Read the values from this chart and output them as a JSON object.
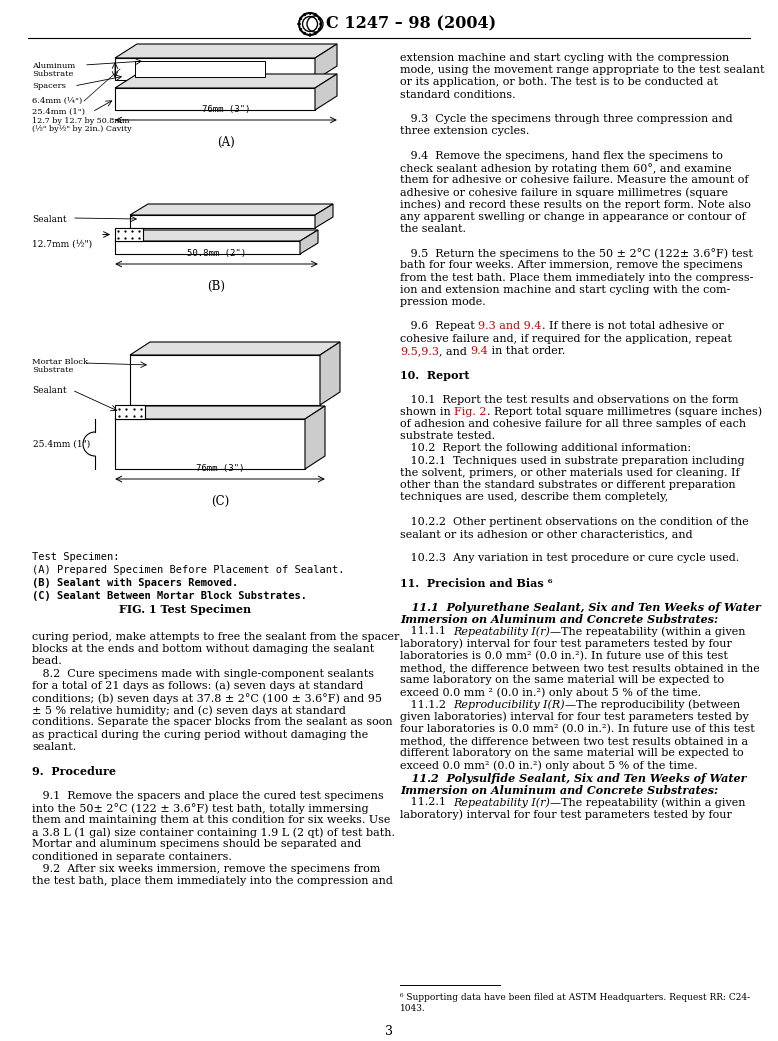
{
  "title": "C 1247 – 98 (2004)",
  "page_number": "3",
  "background_color": "#ffffff",
  "fig_caption_bold": "FIG. 1 Test Specimen",
  "footnote_line1": "   ⁶ Supporting data have been filed at ASTM Headquarters. Request RR: C24-",
  "footnote_line2": "1043."
}
